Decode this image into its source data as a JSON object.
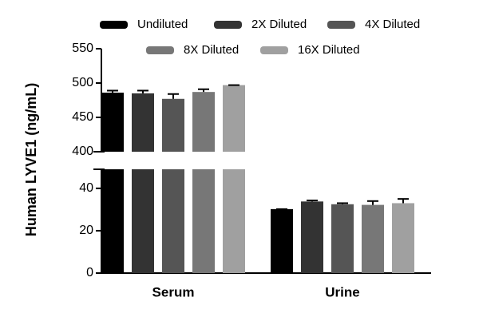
{
  "chart_data": {
    "type": "bar",
    "y_label": "Human LYVE1 (ng/mL)",
    "categories": [
      "Serum",
      "Urine"
    ],
    "series": [
      {
        "name": "Undiluted",
        "color": "#000000",
        "values": [
          486,
          30.2
        ],
        "errors": [
          3,
          0
        ]
      },
      {
        "name": "2X Diluted",
        "color": "#333333",
        "values": [
          485,
          33.8
        ],
        "errors": [
          4,
          0.5
        ]
      },
      {
        "name": "4X Diluted",
        "color": "#555555",
        "values": [
          477,
          32.5
        ],
        "errors": [
          7,
          0.5
        ]
      },
      {
        "name": "8X Diluted",
        "color": "#777777",
        "values": [
          487,
          32.2
        ],
        "errors": [
          4,
          1.8
        ]
      },
      {
        "name": "16X Diluted",
        "color": "#a0a0a0",
        "values": [
          497,
          33
        ],
        "errors": [
          0,
          2
        ]
      }
    ],
    "ylim_lower": [
      0,
      49
    ],
    "yticks_lower": [
      0,
      20,
      40
    ],
    "ylim_upper": [
      400,
      550
    ],
    "yticks_upper": [
      400,
      450,
      500,
      550
    ],
    "grid": false
  }
}
